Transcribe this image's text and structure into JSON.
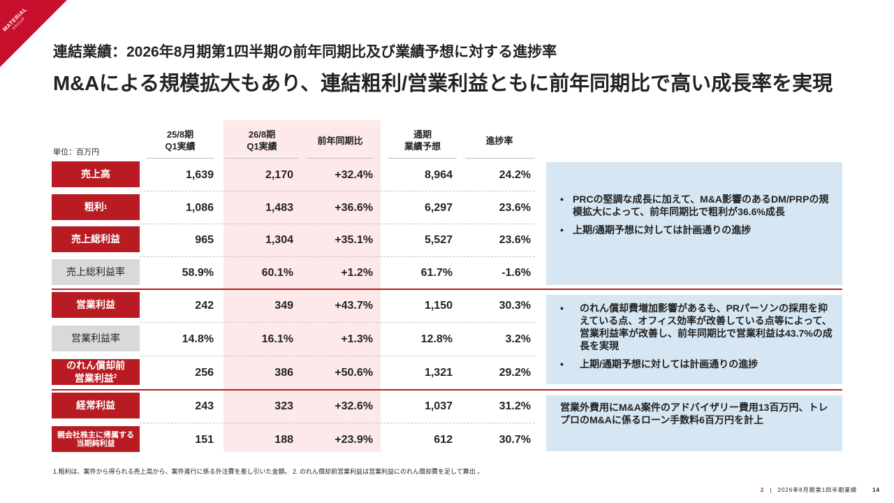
{
  "logo": {
    "line1": "MATERIAL",
    "line2": "GROUP"
  },
  "subtitle": "連結業績：2026年8月期第1四半期の前年同期比及び業績予想に対する進捗率",
  "title": "M&Aによる規模拡大もあり、連結粗利/営業利益ともに前年同期比で高い成長率を実現",
  "unit_label": "単位：百万円",
  "columns": [
    {
      "line1": "25/8期",
      "line2": "Q1実績"
    },
    {
      "line1": "26/8期",
      "line2": "Q1実績"
    },
    {
      "line1": "前年同期比",
      "line2": ""
    },
    {
      "line1": "通期",
      "line2": "業績予想"
    },
    {
      "line1": "進捗率",
      "line2": ""
    }
  ],
  "rows": [
    {
      "label": "売上高",
      "sup": "",
      "values": [
        "1,639",
        "2,170",
        "+32.4%",
        "8,964",
        "24.2%"
      ]
    },
    {
      "label": "粗利",
      "sup": "1",
      "values": [
        "1,086",
        "1,483",
        "+36.6%",
        "6,297",
        "23.6%"
      ]
    },
    {
      "label": "売上総利益",
      "sup": "",
      "values": [
        "965",
        "1,304",
        "+35.1%",
        "5,527",
        "23.6%"
      ]
    },
    {
      "label": "売上総利益率",
      "sup": "",
      "values": [
        "58.9%",
        "60.1%",
        "+1.2%",
        "61.7%",
        "-1.6%"
      ]
    },
    {
      "label": "営業利益",
      "sup": "",
      "values": [
        "242",
        "349",
        "+43.7%",
        "1,150",
        "30.3%"
      ]
    },
    {
      "label": "営業利益率",
      "sup": "",
      "values": [
        "14.8%",
        "16.1%",
        "+1.3%",
        "12.8%",
        "3.2%"
      ]
    },
    {
      "label_line1": "のれん償却前",
      "label_line2": "営業利益",
      "sup": "2",
      "values": [
        "256",
        "386",
        "+50.6%",
        "1,321",
        "29.2%"
      ]
    },
    {
      "label": "経常利益",
      "sup": "",
      "values": [
        "243",
        "323",
        "+32.6%",
        "1,037",
        "31.2%"
      ]
    },
    {
      "label_line1": "親会社株主に帰属する",
      "label_line2": "当期純利益",
      "sup": "",
      "values": [
        "151",
        "188",
        "+23.9%",
        "612",
        "30.7%"
      ]
    }
  ],
  "notes": {
    "box1": [
      "PRCの堅調な成長に加えて、M&A影響のあるDM/PRPの規模拡大によって、前年同期比で粗利が36.6%成長",
      "上期/通期予想に対しては計画通りの進捗"
    ],
    "box2": [
      "のれん償却費増加影響があるも、PRパーソンの採用を抑えている点、オフィス効率が改善している点等によって、営業利益率が改善し、前年同期比で営業利益は43.7%の成長を実現",
      "上期/通期予想に対しては計画通りの進捗"
    ],
    "box3": "営業外費用にM&A案件のアドバイザリー費用13百万円、トレプロのM&Aに係るローン手数料6百万円を計上"
  },
  "footnote": "1.粗利は、案件から得られる売上高から、案件進行に係る外注費を差し引いた金額。 2. のれん償却前営業利益は営業利益にのれん償却費を足して算出 。",
  "footer": {
    "section": "2",
    "divider": "|",
    "text": "2026年8月期第1四半期業績",
    "page": "14"
  },
  "colors": {
    "accent": "#b81c22",
    "highlight_column": "#fde9e9",
    "note_box": "#d6e6f2"
  }
}
